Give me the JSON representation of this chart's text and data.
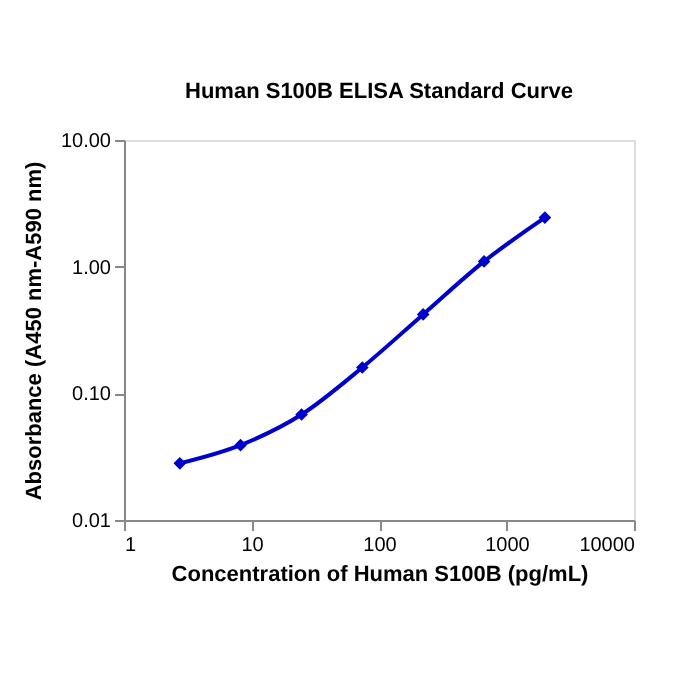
{
  "chart_data": {
    "type": "line",
    "title": "Human S100B ELISA Standard Curve",
    "xlabel": "Concentration of Human S100B (pg/mL)",
    "ylabel": "Absorbance (A450 nm-A590 nm)",
    "x": [
      2.74,
      8.2,
      24.7,
      74,
      222,
      667,
      2000
    ],
    "series": [
      {
        "color": "#0000cc",
        "values": [
          0.028,
          0.039,
          0.068,
          0.16,
          0.42,
          1.1,
          2.44
        ]
      }
    ],
    "log": "xy",
    "xlim": [
      1,
      10000
    ],
    "xticks": [
      1,
      10,
      100,
      1000,
      10000
    ],
    "ylim": [
      0.01,
      10
    ],
    "yticks": [
      0.01,
      {
        "value": 0.1,
        "label": "0.10"
      },
      {
        "value": 1,
        "label": "1.00"
      },
      {
        "value": 10,
        "label": "10.00"
      }
    ],
    "grid": false,
    "marker": "diamond",
    "line_style": "solid"
  }
}
